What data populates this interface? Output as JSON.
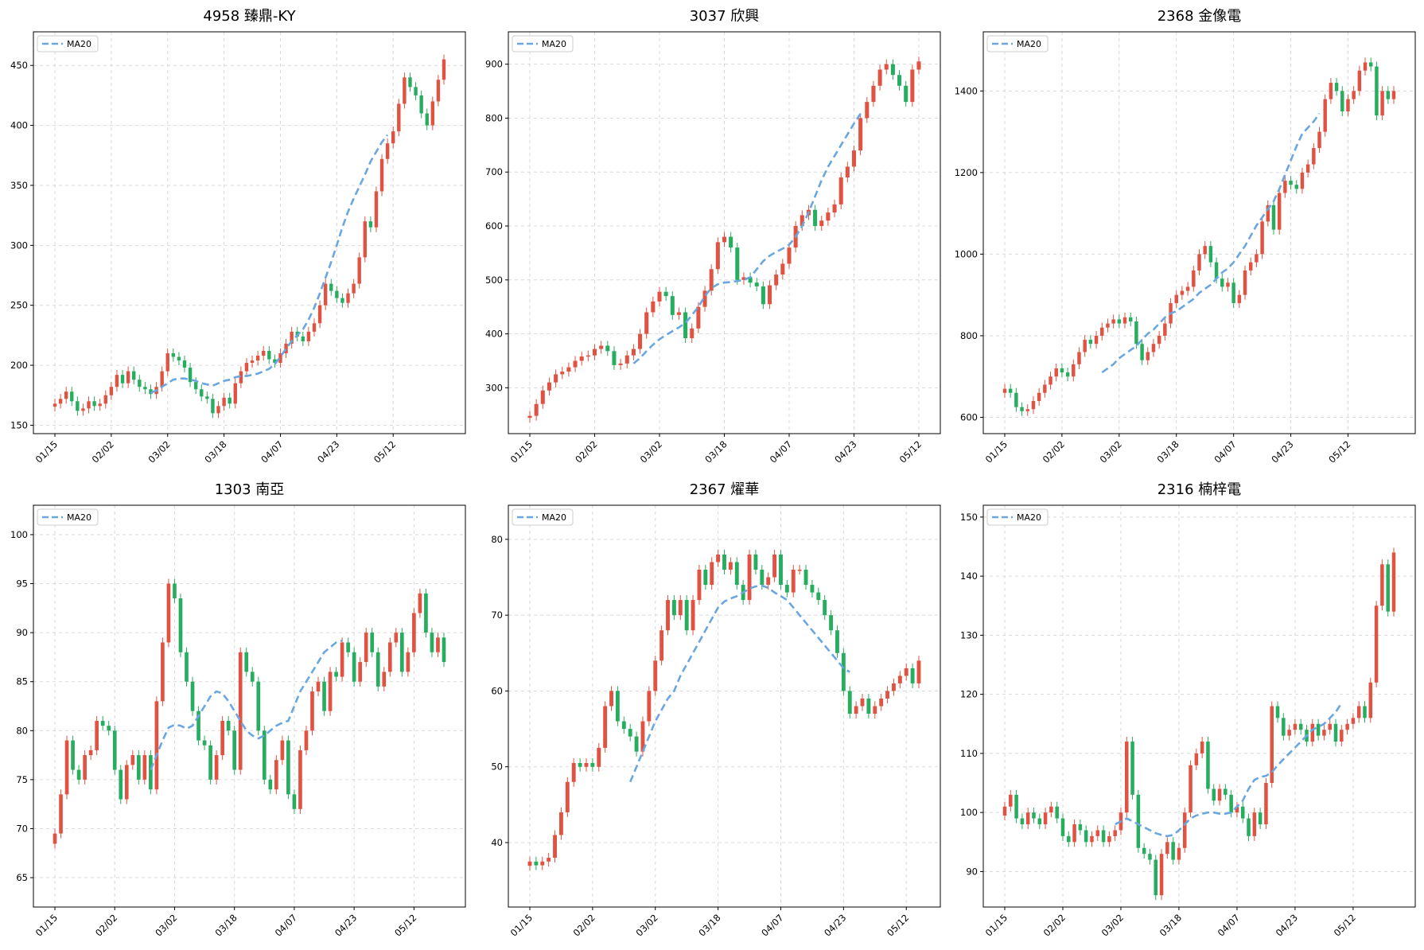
{
  "colors": {
    "up": "#e05343",
    "down": "#27ad60",
    "ma": "#6aa7e0",
    "grid": "#d9d9d9",
    "axis": "#000000"
  },
  "chart_data": [
    {
      "type": "candlestick",
      "title": "4958 臻鼎-KY",
      "legend": "MA20",
      "legend_position": "top-left",
      "grid": true,
      "ylim": [
        143,
        478
      ],
      "yticks": [
        150,
        200,
        250,
        300,
        350,
        400,
        450
      ],
      "xtick_labels": [
        "01/15",
        "02/02",
        "03/02",
        "03/18",
        "04/07",
        "04/23",
        "05/12"
      ],
      "xtick_index": [
        0,
        10,
        20,
        30,
        40,
        50,
        60
      ],
      "closes": [
        168,
        172,
        178,
        170,
        162,
        164,
        170,
        166,
        168,
        175,
        182,
        192,
        185,
        195,
        188,
        182,
        180,
        176,
        182,
        195,
        210,
        207,
        204,
        198,
        186,
        180,
        174,
        172,
        160,
        166,
        173,
        168,
        185,
        195,
        202,
        204,
        208,
        212,
        205,
        202,
        210,
        218,
        228,
        224,
        220,
        228,
        235,
        250,
        268,
        262,
        256,
        252,
        260,
        268,
        290,
        320,
        315,
        345,
        372,
        385,
        395,
        418,
        440,
        432,
        425,
        410,
        400,
        420,
        438,
        455
      ],
      "ma": [
        null,
        null,
        null,
        null,
        null,
        null,
        null,
        null,
        null,
        null,
        null,
        null,
        null,
        null,
        null,
        null,
        null,
        177,
        179,
        182,
        185,
        188,
        189,
        189,
        188,
        187,
        185,
        184,
        183,
        185,
        187,
        188,
        190,
        191,
        191,
        192,
        193,
        195,
        197,
        201,
        207,
        214,
        220,
        225,
        230,
        238,
        248,
        260,
        273,
        286,
        300,
        315,
        328,
        339,
        349,
        359,
        370,
        378,
        386,
        392
      ]
    },
    {
      "type": "candlestick",
      "title": "3037 欣興",
      "legend": "MA20",
      "legend_position": "top-left",
      "grid": true,
      "ylim": [
        215,
        960
      ],
      "yticks": [
        300,
        400,
        500,
        600,
        700,
        800,
        900
      ],
      "xtick_labels": [
        "01/15",
        "02/02",
        "03/02",
        "03/18",
        "04/07",
        "04/23",
        "05/12"
      ],
      "xtick_index": [
        0,
        10,
        20,
        30,
        40,
        50,
        60
      ],
      "closes": [
        248,
        270,
        295,
        310,
        325,
        330,
        338,
        350,
        358,
        360,
        372,
        378,
        368,
        342,
        345,
        360,
        372,
        400,
        440,
        460,
        478,
        470,
        435,
        440,
        392,
        410,
        450,
        480,
        520,
        570,
        580,
        560,
        500,
        505,
        495,
        488,
        455,
        490,
        510,
        530,
        560,
        600,
        620,
        630,
        600,
        610,
        625,
        640,
        690,
        710,
        740,
        800,
        830,
        860,
        890,
        900,
        880,
        860,
        830,
        890,
        905
      ],
      "ma": [
        null,
        null,
        null,
        null,
        null,
        null,
        null,
        null,
        null,
        null,
        null,
        null,
        null,
        null,
        null,
        null,
        345,
        355,
        368,
        380,
        390,
        398,
        405,
        412,
        420,
        435,
        450,
        470,
        485,
        492,
        495,
        496,
        498,
        500,
        505,
        520,
        535,
        545,
        552,
        558,
        565,
        580,
        600,
        625,
        655,
        685,
        710,
        730,
        750,
        770,
        790,
        808
      ]
    },
    {
      "type": "candlestick",
      "title": "2368 金像電",
      "legend": "MA20",
      "legend_position": "top-left",
      "grid": true,
      "ylim": [
        560,
        1545
      ],
      "yticks": [
        600,
        800,
        1000,
        1200,
        1400
      ],
      "xtick_labels": [
        "01/15",
        "02/02",
        "03/02",
        "03/18",
        "04/07",
        "04/23",
        "05/12"
      ],
      "xtick_index": [
        0,
        10,
        20,
        30,
        40,
        50,
        60
      ],
      "closes": [
        670,
        660,
        625,
        615,
        620,
        640,
        660,
        680,
        700,
        720,
        710,
        700,
        730,
        760,
        790,
        780,
        800,
        820,
        830,
        840,
        830,
        845,
        835,
        780,
        740,
        760,
        780,
        800,
        830,
        880,
        900,
        910,
        920,
        960,
        1000,
        1020,
        980,
        940,
        920,
        930,
        880,
        900,
        960,
        980,
        1000,
        1080,
        1120,
        1060,
        1150,
        1180,
        1170,
        1160,
        1200,
        1220,
        1260,
        1300,
        1380,
        1420,
        1400,
        1350,
        1380,
        1400,
        1450,
        1470,
        1460,
        1340,
        1400,
        1380,
        1400
      ],
      "ma": [
        null,
        null,
        null,
        null,
        null,
        null,
        null,
        null,
        null,
        null,
        null,
        null,
        null,
        null,
        null,
        null,
        null,
        710,
        720,
        730,
        745,
        755,
        765,
        775,
        790,
        805,
        815,
        830,
        845,
        855,
        860,
        870,
        880,
        890,
        905,
        915,
        925,
        940,
        955,
        965,
        980,
        1000,
        1020,
        1045,
        1070,
        1090,
        1110,
        1130,
        1160,
        1195,
        1230,
        1265,
        1295,
        1310,
        1325,
        1345
      ]
    },
    {
      "type": "candlestick",
      "title": "1303 南亞",
      "legend": "MA20",
      "legend_position": "top-left",
      "grid": true,
      "ylim": [
        62,
        103
      ],
      "yticks": [
        65,
        70,
        75,
        80,
        85,
        90,
        95,
        100
      ],
      "xtick_labels": [
        "01/15",
        "02/02",
        "03/02",
        "03/18",
        "04/07",
        "04/23",
        "05/12"
      ],
      "xtick_index": [
        0,
        10,
        20,
        30,
        40,
        50,
        60
      ],
      "closes": [
        69.5,
        73.5,
        79,
        76,
        75,
        77.5,
        78,
        81,
        80.5,
        80,
        76,
        73,
        76.5,
        77.5,
        75,
        77.5,
        74,
        83,
        89,
        95,
        93.5,
        88,
        85,
        82,
        79,
        78.5,
        75,
        77.5,
        81,
        80,
        76,
        88,
        86,
        85,
        80,
        75,
        74,
        77,
        79,
        73.5,
        72,
        78,
        80,
        84,
        85,
        82,
        86,
        85.5,
        89,
        88,
        85,
        87,
        90,
        88,
        84.5,
        86,
        89,
        90,
        86,
        88,
        92,
        94,
        90,
        88,
        89.5,
        87
      ],
      "ma": [
        null,
        null,
        null,
        null,
        null,
        null,
        null,
        null,
        null,
        null,
        null,
        null,
        null,
        null,
        null,
        null,
        76,
        77.5,
        79,
        80.3,
        80.6,
        80.5,
        80.2,
        80.5,
        81.5,
        82.5,
        83.5,
        84,
        83.8,
        83,
        82,
        81,
        80,
        79.5,
        79.2,
        79.5,
        80,
        80.5,
        80.8,
        81,
        82.5,
        84,
        85,
        86,
        87,
        88,
        88.5,
        89,
        89.2
      ]
    },
    {
      "type": "candlestick",
      "title": "2367 燿華",
      "legend": "MA20",
      "legend_position": "top-left",
      "grid": true,
      "ylim": [
        31.5,
        84.5
      ],
      "yticks": [
        40,
        50,
        60,
        70,
        80
      ],
      "xtick_labels": [
        "01/15",
        "02/02",
        "03/02",
        "03/18",
        "04/07",
        "04/23",
        "05/12"
      ],
      "xtick_index": [
        0,
        10,
        20,
        30,
        40,
        50,
        60
      ],
      "closes": [
        37.5,
        37,
        37.5,
        38,
        41,
        44,
        48,
        50.5,
        50,
        50.5,
        50,
        52.5,
        58,
        60,
        56,
        55,
        54,
        52,
        56,
        60,
        64,
        68,
        72,
        70,
        72,
        68,
        72,
        76,
        74,
        77,
        78,
        76,
        77,
        74,
        72,
        78,
        76,
        74,
        75,
        78,
        74,
        73,
        76,
        76,
        74,
        73,
        72,
        70,
        68,
        65,
        60,
        57,
        58,
        59,
        57,
        58,
        59,
        60,
        61,
        62,
        63,
        61,
        64
      ],
      "ma": [
        null,
        null,
        null,
        null,
        null,
        null,
        null,
        null,
        null,
        null,
        null,
        null,
        null,
        null,
        null,
        null,
        48,
        50,
        52,
        54,
        56,
        57.5,
        59,
        60,
        62,
        63.5,
        65,
        66.5,
        68,
        69.5,
        71,
        71.8,
        72.2,
        72.5,
        73,
        73.5,
        73.8,
        73.9,
        73.6,
        73,
        72.5,
        72,
        71,
        70,
        69,
        68,
        67,
        66,
        65,
        64,
        63,
        62.5
      ]
    },
    {
      "type": "candlestick",
      "title": "2316 楠梓電",
      "legend": "MA20",
      "legend_position": "top-left",
      "grid": true,
      "ylim": [
        84,
        152
      ],
      "yticks": [
        90,
        100,
        110,
        120,
        130,
        140,
        150
      ],
      "xtick_labels": [
        "01/15",
        "02/02",
        "03/02",
        "03/18",
        "04/07",
        "04/23",
        "05/12"
      ],
      "xtick_index": [
        0,
        10,
        20,
        30,
        40,
        50,
        60
      ],
      "closes": [
        101,
        103,
        99,
        98,
        100,
        99,
        98,
        100,
        101,
        99,
        96,
        95,
        98,
        97,
        95,
        96,
        97,
        95,
        96,
        97,
        100,
        112,
        103,
        94,
        93,
        92,
        86,
        93,
        95,
        92,
        94,
        100,
        108,
        110,
        112,
        104,
        102,
        104,
        103,
        100,
        101,
        99,
        96,
        100,
        98,
        105,
        118,
        116,
        113,
        114,
        115,
        114,
        112,
        115,
        113,
        114,
        115,
        112,
        114,
        115,
        116,
        118,
        116,
        122,
        135,
        142,
        134,
        144
      ],
      "ma": [
        null,
        null,
        null,
        null,
        null,
        null,
        null,
        null,
        null,
        null,
        null,
        null,
        null,
        null,
        null,
        null,
        null,
        null,
        null,
        98,
        98.5,
        99,
        98.5,
        98,
        97.5,
        97,
        96.5,
        96.2,
        96,
        96.2,
        97,
        98,
        99,
        99.5,
        99.8,
        100,
        100,
        99.8,
        99.8,
        100,
        101,
        102,
        104,
        105.5,
        106,
        106.2,
        106.8,
        108,
        109,
        110,
        111,
        112,
        113,
        114,
        114.5,
        115,
        116,
        117,
        118.5
      ]
    }
  ]
}
